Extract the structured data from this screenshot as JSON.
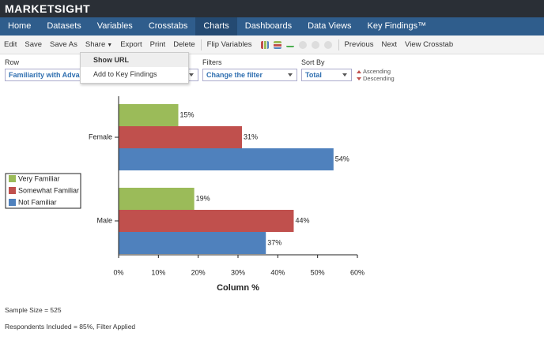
{
  "header": {
    "logo": "MARKETSIGHT"
  },
  "nav": {
    "items": [
      "Home",
      "Datasets",
      "Variables",
      "Crosstabs",
      "Charts",
      "Dashboards",
      "Data Views",
      "Key Findings™"
    ]
  },
  "toolbar": {
    "left": [
      "Edit",
      "Save",
      "Save As",
      "Share",
      "Export",
      "Print",
      "Delete"
    ],
    "middle": [
      "Flip Variables"
    ],
    "right": [
      "Previous",
      "Next",
      "View Crosstab"
    ]
  },
  "menu": {
    "items": [
      "Show URL",
      "Add to Key Findings"
    ]
  },
  "controls": {
    "row_label": "Row",
    "row_value": "Familiarity with Advanc",
    "filters_label": "Filters",
    "filters_value": "Change the filter",
    "sort_label": "Sort By",
    "sort_value": "Total",
    "ascending": "Ascending",
    "descending": "Descending"
  },
  "chart_data": {
    "type": "bar",
    "orientation": "horizontal",
    "x_label": "Column %",
    "categories": [
      "Female",
      "Male"
    ],
    "series": [
      {
        "name": "Very Familiar",
        "color": "#9bbb59",
        "values": [
          15,
          19
        ],
        "value_labels": [
          "15%",
          "19%"
        ]
      },
      {
        "name": "Somewhat Familiar",
        "color": "#c0504d",
        "values": [
          31,
          44
        ],
        "value_labels": [
          "31%",
          "44%"
        ]
      },
      {
        "name": "Not Familiar",
        "color": "#4f81bd",
        "values": [
          54,
          37
        ],
        "value_labels": [
          "54%",
          "37%"
        ]
      }
    ],
    "xlim": [
      0,
      60
    ],
    "xticks": [
      {
        "value": 0,
        "label": "0%"
      },
      {
        "value": 10,
        "label": "10%"
      },
      {
        "value": 20,
        "label": "20%"
      },
      {
        "value": 30,
        "label": "30%"
      },
      {
        "value": 40,
        "label": "40%"
      },
      {
        "value": 50,
        "label": "50%"
      },
      {
        "value": 60,
        "label": "60%"
      }
    ],
    "legend": "left"
  },
  "footer": {
    "sample_size": "Sample Size = 525",
    "respondents": "Respondents Included = 85%, Filter Applied"
  }
}
